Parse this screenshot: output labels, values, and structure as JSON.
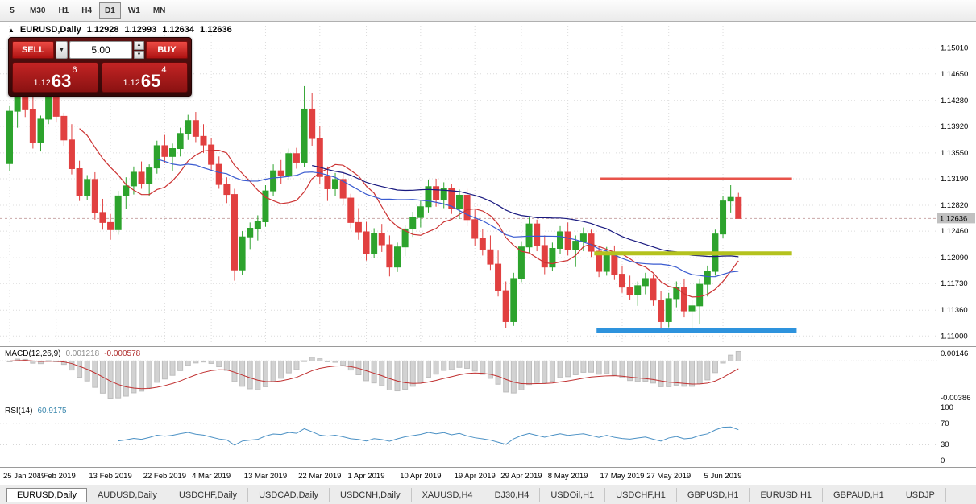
{
  "toolbar": {
    "timeframes": [
      {
        "label": "5",
        "active": false
      },
      {
        "label": "M30",
        "active": false
      },
      {
        "label": "H1",
        "active": false
      },
      {
        "label": "H4",
        "active": false
      },
      {
        "label": "D1",
        "active": true
      },
      {
        "label": "W1",
        "active": false
      },
      {
        "label": "MN",
        "active": false
      }
    ]
  },
  "header": {
    "expand_icon": "▲",
    "symbol": "EURUSD,Daily",
    "open": "1.12928",
    "high": "1.12993",
    "low": "1.12634",
    "close": "1.12636"
  },
  "trade_panel": {
    "sell_label": "SELL",
    "buy_label": "BUY",
    "volume": "5.00",
    "sell_price_small": "1.12",
    "sell_price_big": "63",
    "sell_price_sup": "6",
    "buy_price_small": "1.12",
    "buy_price_big": "65",
    "buy_price_sup": "4"
  },
  "chart_data": {
    "type": "candlestick",
    "title": "EURUSD,Daily",
    "current_price": "1.12636",
    "price_range": {
      "min": 1.1088,
      "max": 1.1532
    },
    "y_ticks": [
      "1.15010",
      "1.14650",
      "1.14280",
      "1.13920",
      "1.13550",
      "1.13190",
      "1.12820",
      "1.12460",
      "1.12090",
      "1.11730",
      "1.11360",
      "1.11000"
    ],
    "x_ticks": [
      {
        "i": 0,
        "label": "25 Jan 2019"
      },
      {
        "i": 6,
        "label": "4 Feb 2019"
      },
      {
        "i": 13,
        "label": "13 Feb 2019"
      },
      {
        "i": 20,
        "label": "22 Feb 2019"
      },
      {
        "i": 26,
        "label": "4 Mar 2019"
      },
      {
        "i": 33,
        "label": "13 Mar 2019"
      },
      {
        "i": 40,
        "label": "22 Mar 2019"
      },
      {
        "i": 46,
        "label": "1 Apr 2019"
      },
      {
        "i": 53,
        "label": "10 Apr 2019"
      },
      {
        "i": 60,
        "label": "19 Apr 2019"
      },
      {
        "i": 66,
        "label": "29 Apr 2019"
      },
      {
        "i": 72,
        "label": "8 May 2019"
      },
      {
        "i": 79,
        "label": "17 May 2019"
      },
      {
        "i": 85,
        "label": "27 May 2019"
      },
      {
        "i": 92,
        "label": "5 Jun 2019"
      }
    ],
    "candles": [
      [
        1.134,
        1.142,
        1.133,
        1.1413
      ],
      [
        1.1413,
        1.1443,
        1.139,
        1.1437
      ],
      [
        1.1437,
        1.1448,
        1.1405,
        1.1415
      ],
      [
        1.1415,
        1.1436,
        1.1361,
        1.137
      ],
      [
        1.137,
        1.1407,
        1.1357,
        1.1402
      ],
      [
        1.1402,
        1.145,
        1.1395,
        1.1443
      ],
      [
        1.1443,
        1.1448,
        1.1398,
        1.1406
      ],
      [
        1.1406,
        1.1411,
        1.1365,
        1.1373
      ],
      [
        1.1373,
        1.1395,
        1.1325,
        1.1333
      ],
      [
        1.1333,
        1.1344,
        1.1288,
        1.1296
      ],
      [
        1.1296,
        1.1324,
        1.1289,
        1.1318
      ],
      [
        1.1318,
        1.1328,
        1.1262,
        1.1272
      ],
      [
        1.1272,
        1.1291,
        1.1248,
        1.1258
      ],
      [
        1.1258,
        1.127,
        1.1234,
        1.1248
      ],
      [
        1.1248,
        1.1302,
        1.1241,
        1.1295
      ],
      [
        1.1295,
        1.1321,
        1.1277,
        1.1309
      ],
      [
        1.1309,
        1.1336,
        1.1297,
        1.1328
      ],
      [
        1.1328,
        1.1343,
        1.1305,
        1.1312
      ],
      [
        1.1312,
        1.1339,
        1.1295,
        1.1334
      ],
      [
        1.1334,
        1.1372,
        1.1326,
        1.1365
      ],
      [
        1.1365,
        1.138,
        1.1341,
        1.135
      ],
      [
        1.135,
        1.1368,
        1.133,
        1.1361
      ],
      [
        1.1361,
        1.139,
        1.135,
        1.1382
      ],
      [
        1.1382,
        1.1408,
        1.1373,
        1.14
      ],
      [
        1.14,
        1.1412,
        1.137,
        1.1378
      ],
      [
        1.1378,
        1.1395,
        1.1355,
        1.1366
      ],
      [
        1.1366,
        1.1375,
        1.133,
        1.1339
      ],
      [
        1.1339,
        1.135,
        1.1305,
        1.1311
      ],
      [
        1.1311,
        1.1321,
        1.1285,
        1.1297
      ],
      [
        1.1297,
        1.1305,
        1.1177,
        1.1192
      ],
      [
        1.1192,
        1.1246,
        1.1185,
        1.1238
      ],
      [
        1.1238,
        1.1258,
        1.1221,
        1.125
      ],
      [
        1.125,
        1.1268,
        1.1233,
        1.1259
      ],
      [
        1.1259,
        1.131,
        1.1252,
        1.1302
      ],
      [
        1.1302,
        1.1339,
        1.1295,
        1.133
      ],
      [
        1.133,
        1.1345,
        1.1312,
        1.1324
      ],
      [
        1.1324,
        1.1361,
        1.1317,
        1.1354
      ],
      [
        1.1354,
        1.1362,
        1.1333,
        1.1342
      ],
      [
        1.1342,
        1.1448,
        1.1335,
        1.1416
      ],
      [
        1.1416,
        1.1438,
        1.1365,
        1.1375
      ],
      [
        1.1375,
        1.1392,
        1.1311,
        1.1322
      ],
      [
        1.1322,
        1.1336,
        1.1288,
        1.1305
      ],
      [
        1.1305,
        1.1327,
        1.1295,
        1.1318
      ],
      [
        1.1318,
        1.133,
        1.1282,
        1.1292
      ],
      [
        1.1292,
        1.1298,
        1.125,
        1.1258
      ],
      [
        1.1258,
        1.1278,
        1.1234,
        1.1245
      ],
      [
        1.1245,
        1.1259,
        1.1205,
        1.1215
      ],
      [
        1.1215,
        1.125,
        1.1208,
        1.1243
      ],
      [
        1.1243,
        1.1256,
        1.1217,
        1.1227
      ],
      [
        1.1227,
        1.124,
        1.1183,
        1.1196
      ],
      [
        1.1196,
        1.123,
        1.1189,
        1.1224
      ],
      [
        1.1224,
        1.1255,
        1.1211,
        1.1249
      ],
      [
        1.1249,
        1.1273,
        1.1238,
        1.1265
      ],
      [
        1.1265,
        1.1288,
        1.1251,
        1.128
      ],
      [
        1.128,
        1.1318,
        1.1272,
        1.1308
      ],
      [
        1.1308,
        1.1319,
        1.128,
        1.129
      ],
      [
        1.129,
        1.1314,
        1.1278,
        1.1306
      ],
      [
        1.1306,
        1.1312,
        1.127,
        1.1278
      ],
      [
        1.1278,
        1.1304,
        1.1263,
        1.1296
      ],
      [
        1.1296,
        1.1305,
        1.1253,
        1.1262
      ],
      [
        1.1262,
        1.1276,
        1.1226,
        1.1236
      ],
      [
        1.1236,
        1.1249,
        1.1212,
        1.122
      ],
      [
        1.122,
        1.124,
        1.1192,
        1.12
      ],
      [
        1.12,
        1.1219,
        1.1155,
        1.1163
      ],
      [
        1.1163,
        1.1176,
        1.1111,
        1.112
      ],
      [
        1.112,
        1.1188,
        1.1114,
        1.118
      ],
      [
        1.118,
        1.1232,
        1.1175,
        1.1224
      ],
      [
        1.1224,
        1.1265,
        1.1216,
        1.1256
      ],
      [
        1.1256,
        1.1262,
        1.1218,
        1.1226
      ],
      [
        1.1226,
        1.124,
        1.1186,
        1.1196
      ],
      [
        1.1196,
        1.123,
        1.119,
        1.1222
      ],
      [
        1.1222,
        1.1253,
        1.1214,
        1.1245
      ],
      [
        1.1245,
        1.1258,
        1.1212,
        1.122
      ],
      [
        1.122,
        1.124,
        1.1196,
        1.1232
      ],
      [
        1.1232,
        1.1251,
        1.1218,
        1.1242
      ],
      [
        1.1242,
        1.1248,
        1.121,
        1.1218
      ],
      [
        1.1218,
        1.1226,
        1.1182,
        1.119
      ],
      [
        1.119,
        1.1224,
        1.1184,
        1.1216
      ],
      [
        1.1216,
        1.1226,
        1.1178,
        1.1186
      ],
      [
        1.1186,
        1.1198,
        1.116,
        1.1168
      ],
      [
        1.1168,
        1.1184,
        1.115,
        1.1158
      ],
      [
        1.1158,
        1.1176,
        1.1142,
        1.117
      ],
      [
        1.117,
        1.1188,
        1.1158,
        1.118
      ],
      [
        1.118,
        1.1186,
        1.1142,
        1.115
      ],
      [
        1.115,
        1.1162,
        1.1107,
        1.112
      ],
      [
        1.112,
        1.116,
        1.1112,
        1.1152
      ],
      [
        1.1152,
        1.1176,
        1.114,
        1.1168
      ],
      [
        1.1168,
        1.118,
        1.1126,
        1.1135
      ],
      [
        1.1135,
        1.115,
        1.1108,
        1.1142
      ],
      [
        1.1142,
        1.118,
        1.1116,
        1.1172
      ],
      [
        1.1172,
        1.1198,
        1.1155,
        1.119
      ],
      [
        1.119,
        1.1248,
        1.1184,
        1.1242
      ],
      [
        1.1242,
        1.1295,
        1.1236,
        1.1288
      ],
      [
        1.1288,
        1.131,
        1.1272,
        1.1293
      ],
      [
        1.12928,
        1.12993,
        1.12634,
        1.12636
      ]
    ],
    "moving_averages": [
      {
        "period": 10,
        "color_key": "ma_fast"
      },
      {
        "period": 20,
        "color_key": "ma_mid"
      },
      {
        "period": 40,
        "color_key": "ma_slow"
      }
    ],
    "hlines": [
      {
        "price": 1.1319,
        "i1": 76.2,
        "i2": 100.9,
        "width": 3,
        "color_key": "hline_red"
      },
      {
        "price": 1.1215,
        "i1": 75.4,
        "i2": 100.9,
        "width": 5,
        "color_key": "hline_olive"
      },
      {
        "price": 1.1108,
        "i1": 75.7,
        "i2": 101.5,
        "width": 6,
        "color_key": "hline_blue"
      }
    ],
    "macd": {
      "name": "MACD(12,26,9)",
      "value_main": "0.001218",
      "value_signal": "-0.000578",
      "fast": 12,
      "slow": 26,
      "signal": 9,
      "axis_labels": [
        "0.00146",
        "-0.00386"
      ]
    },
    "rsi": {
      "name": "RSI(14)",
      "value": "60.9175",
      "period": 14,
      "levels": [
        70,
        30
      ],
      "axis_labels": [
        "100",
        "70",
        "30",
        "0"
      ]
    },
    "colors": {
      "up": "#2da32d",
      "down": "#e14040",
      "grid": "#dcdcdc",
      "ma_fast": "#cc3333",
      "ma_mid": "#3a5bd0",
      "ma_slow": "#1a1a80",
      "macd_hist": "#d2d2d2",
      "macd_signal": "#c03030",
      "rsi_line": "#4a90c4",
      "hline_red": "#e8534a",
      "hline_olive": "#b4c21e",
      "hline_blue": "#2e93dd"
    }
  },
  "tabs": [
    {
      "label": "EURUSD,Daily",
      "active": true
    },
    {
      "label": "AUDUSD,Daily",
      "active": false
    },
    {
      "label": "USDCHF,Daily",
      "active": false
    },
    {
      "label": "USDCAD,Daily",
      "active": false
    },
    {
      "label": "USDCNH,Daily",
      "active": false
    },
    {
      "label": "XAUUSD,H4",
      "active": false
    },
    {
      "label": "DJ30,H4",
      "active": false
    },
    {
      "label": "USDOil,H1",
      "active": false
    },
    {
      "label": "USDCHF,H1",
      "active": false
    },
    {
      "label": "GBPUSD,H1",
      "active": false
    },
    {
      "label": "EURUSD,H1",
      "active": false
    },
    {
      "label": "GBPAUD,H1",
      "active": false
    },
    {
      "label": "USDJP",
      "active": false
    }
  ]
}
